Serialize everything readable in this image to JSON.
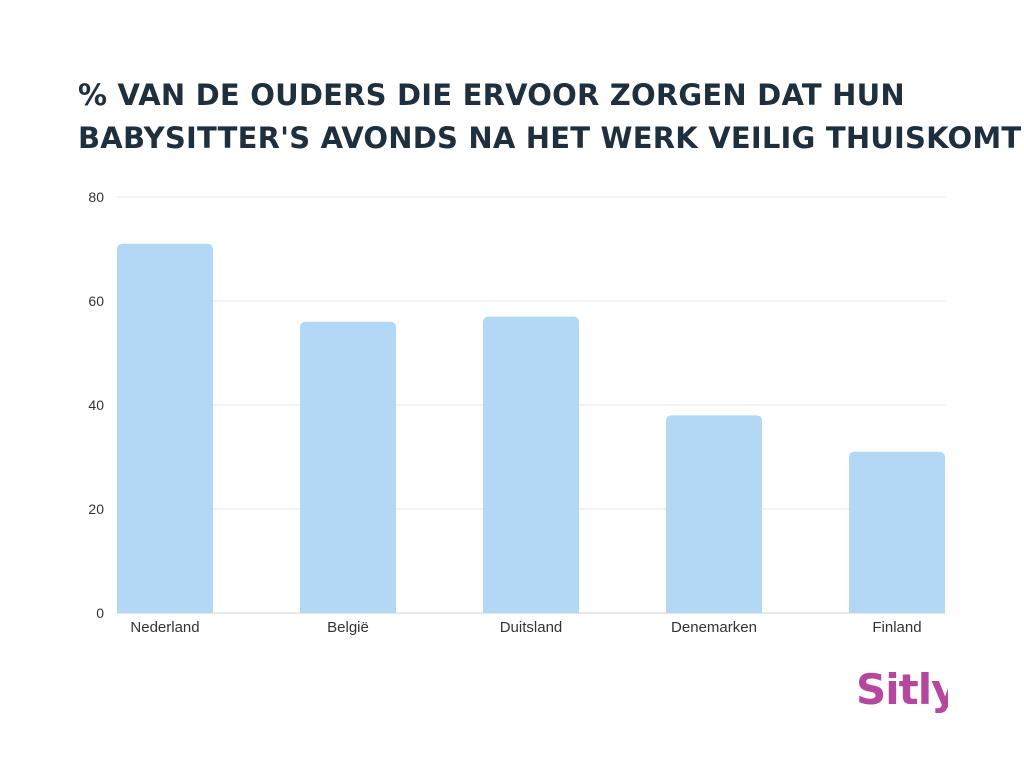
{
  "chart_data": {
    "type": "bar",
    "title_lines": [
      "% VAN DE OUDERS DIE ERVOOR ZORGEN DAT HUN",
      "BABYSITTER'S AVONDS NA HET WERK VEILIG THUISKOMT"
    ],
    "categories": [
      "Nederland",
      "België",
      "Duitsland",
      "Denemarken",
      "Finland"
    ],
    "values": [
      71,
      56,
      57,
      38,
      31
    ],
    "ylim": [
      0,
      80
    ],
    "yticks": [
      0,
      20,
      40,
      60,
      80
    ],
    "grid": true,
    "legend": "none",
    "bar_color": "#b3d8f5",
    "grid_color": "#e6e6e6"
  },
  "brand": {
    "logo_text": "Sitly",
    "logo_color": "#b5479e"
  }
}
